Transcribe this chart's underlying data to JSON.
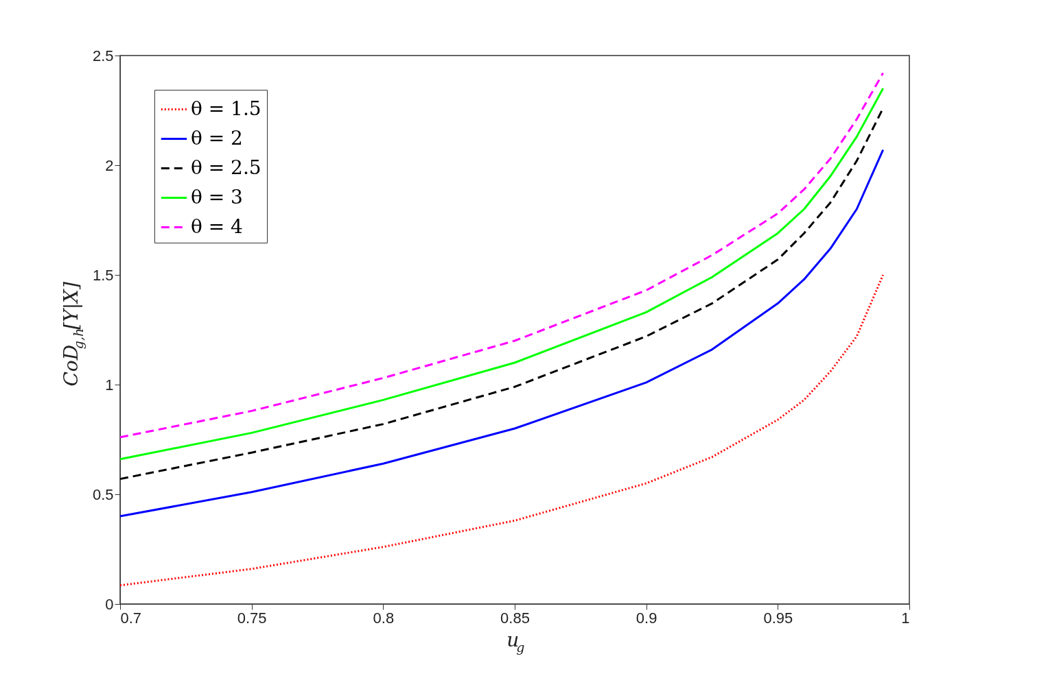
{
  "chart_data": {
    "type": "line",
    "xlabel": "u$_{g}$",
    "ylabel": "CoD$_{g,h}$[Y|X]",
    "x": [
      0.7,
      0.75,
      0.8,
      0.85,
      0.9,
      0.925,
      0.95,
      0.96,
      0.97,
      0.98,
      0.99
    ],
    "series": [
      {
        "name": "θ = 1.5",
        "color": "#ff0000",
        "line_style": "dotted",
        "values": [
          0.085,
          0.16,
          0.26,
          0.38,
          0.55,
          0.67,
          0.84,
          0.93,
          1.06,
          1.22,
          1.5
        ]
      },
      {
        "name": "θ = 2",
        "color": "#0000ff",
        "line_style": "solid",
        "values": [
          0.4,
          0.51,
          0.64,
          0.8,
          1.01,
          1.16,
          1.37,
          1.48,
          1.62,
          1.8,
          2.07
        ]
      },
      {
        "name": "θ = 2.5",
        "color": "#000000",
        "line_style": "dashed",
        "values": [
          0.57,
          0.69,
          0.82,
          0.99,
          1.22,
          1.37,
          1.57,
          1.69,
          1.83,
          2.02,
          2.26
        ]
      },
      {
        "name": "θ = 3",
        "color": "#00ff00",
        "line_style": "solid",
        "values": [
          0.66,
          0.78,
          0.93,
          1.1,
          1.33,
          1.49,
          1.69,
          1.8,
          1.95,
          2.13,
          2.35
        ]
      },
      {
        "name": "θ = 4",
        "color": "#ff00ff",
        "line_style": "dashed",
        "values": [
          0.76,
          0.88,
          1.03,
          1.2,
          1.43,
          1.59,
          1.78,
          1.89,
          2.03,
          2.21,
          2.42
        ]
      }
    ],
    "xlim": [
      0.7,
      1
    ],
    "xticks": [
      0.7,
      0.75,
      0.8,
      0.85,
      0.9,
      0.95,
      1
    ],
    "ylim": [
      0,
      2.5
    ],
    "yticks": [
      0,
      0.5,
      1,
      1.5,
      2,
      2.5
    ],
    "grid": false,
    "legend": "top left",
    "marker": "none"
  }
}
